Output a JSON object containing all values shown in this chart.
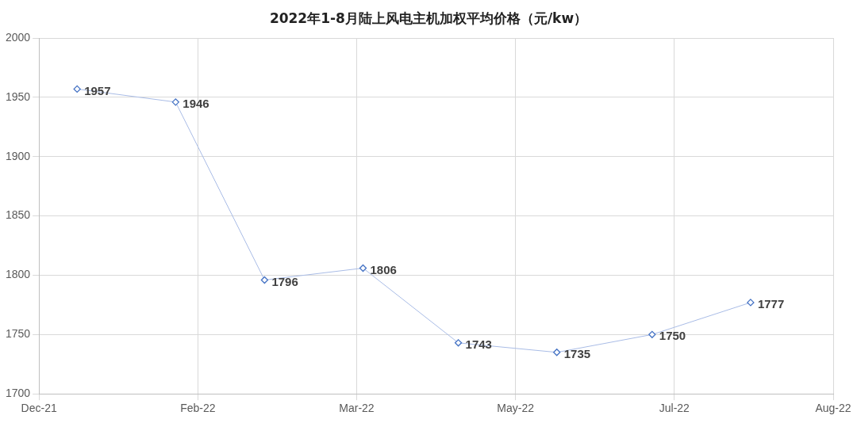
{
  "chart_data": {
    "type": "line",
    "title": "2022年1-8月陆上风电主机加权平均价格（元/kw）",
    "x": [
      "2022-01-01",
      "2022-02-01",
      "2022-03-01",
      "2022-04-01",
      "2022-05-01",
      "2022-06-01",
      "2022-07-01",
      "2022-08-01"
    ],
    "series": [
      {
        "color": "#4472c4",
        "values": [
          1957,
          1946,
          1796,
          1806,
          1743,
          1735,
          1750,
          1777
        ]
      }
    ],
    "xlim": [
      "2021-12-20",
      "2022-08-27"
    ],
    "xticks": [
      {
        "value": "2021-12-20",
        "label": "Dec-21"
      },
      {
        "value": "2022-02-08",
        "label": "Feb-22"
      },
      {
        "value": "2022-03-30",
        "label": "Mar-22"
      },
      {
        "value": "2022-05-19",
        "label": "May-22"
      },
      {
        "value": "2022-07-08",
        "label": "Jul-22"
      },
      {
        "value": "2022-08-27",
        "label": "Aug-22"
      }
    ],
    "ylim": [
      1700,
      2000
    ],
    "yticks": [
      1700,
      1750,
      1800,
      1850,
      1900,
      1950,
      2000
    ],
    "grid": true,
    "legend": false,
    "marker": "diamond",
    "line_style": "solid",
    "data_labels": true
  }
}
